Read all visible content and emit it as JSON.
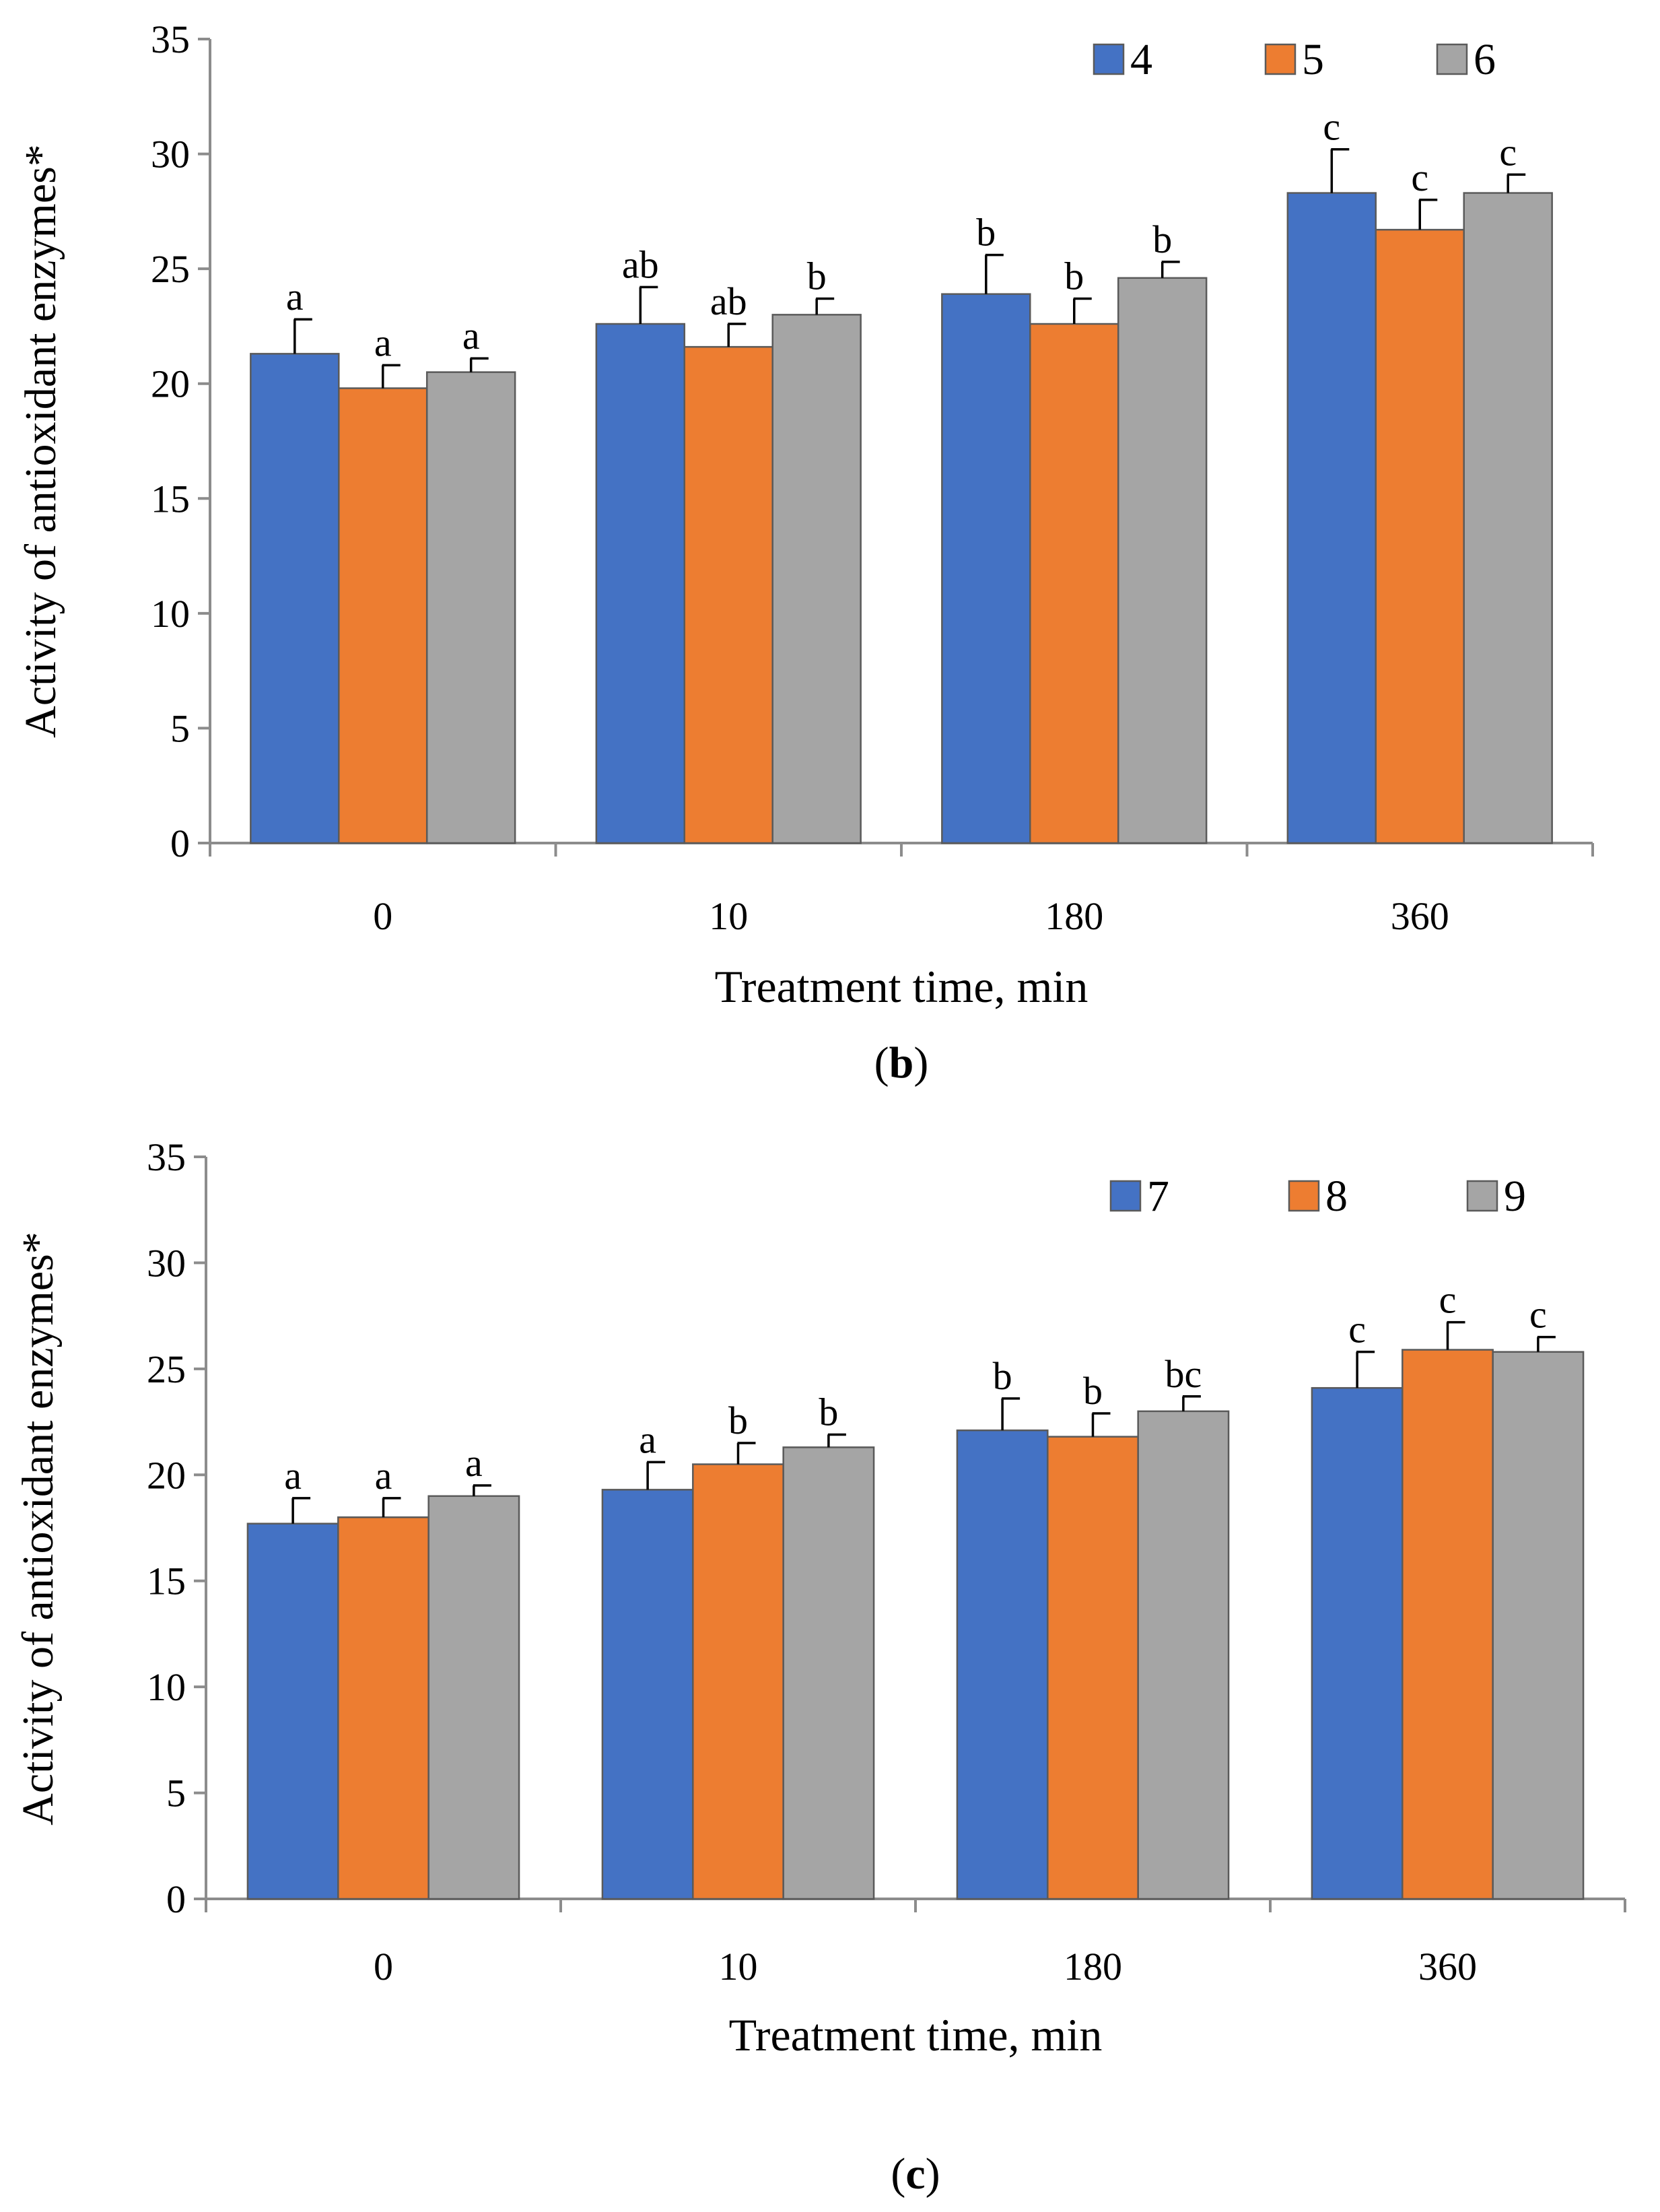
{
  "chart_data": [
    {
      "type": "bar",
      "panel_label": "b",
      "categories": [
        "0",
        "10",
        "180",
        "360"
      ],
      "series": [
        {
          "name": "4",
          "color": "#4472C4",
          "values": [
            21.3,
            22.6,
            23.9,
            28.3
          ],
          "errors": [
            1.5,
            1.6,
            1.7,
            1.9
          ],
          "letters": [
            "a",
            "ab",
            "b",
            "c"
          ]
        },
        {
          "name": "5",
          "color": "#ED7D31",
          "values": [
            19.8,
            21.6,
            22.6,
            26.7
          ],
          "errors": [
            1.0,
            1.0,
            1.1,
            1.3
          ],
          "letters": [
            "a",
            "ab",
            "b",
            "c"
          ]
        },
        {
          "name": "6",
          "color": "#A5A5A5",
          "values": [
            20.5,
            23.0,
            24.6,
            28.3
          ],
          "errors": [
            0.6,
            0.7,
            0.7,
            0.8
          ],
          "letters": [
            "a",
            "b",
            "b",
            "c"
          ]
        }
      ],
      "xlabel": "Treatment time, min",
      "ylabel": "Activity of antioxidant enzymes*",
      "ylim": [
        0,
        35
      ],
      "yticks": [
        0,
        5,
        10,
        15,
        20,
        25,
        30,
        35
      ],
      "grid": false,
      "legend": "top-right"
    },
    {
      "type": "bar",
      "panel_label": "c",
      "categories": [
        "0",
        "10",
        "180",
        "360"
      ],
      "series": [
        {
          "name": "7",
          "color": "#4472C4",
          "values": [
            17.7,
            19.3,
            22.1,
            24.1
          ],
          "errors": [
            1.2,
            1.3,
            1.5,
            1.7
          ],
          "letters": [
            "a",
            "a",
            "b",
            "c"
          ]
        },
        {
          "name": "8",
          "color": "#ED7D31",
          "values": [
            18.0,
            20.5,
            21.8,
            25.9
          ],
          "errors": [
            0.9,
            1.0,
            1.1,
            1.3
          ],
          "letters": [
            "a",
            "b",
            "b",
            "c"
          ]
        },
        {
          "name": "9",
          "color": "#A5A5A5",
          "values": [
            19.0,
            21.3,
            23.0,
            25.8
          ],
          "errors": [
            0.5,
            0.6,
            0.7,
            0.7
          ],
          "letters": [
            "a",
            "b",
            "bc",
            "c"
          ]
        }
      ],
      "xlabel": "Treatment time, min",
      "ylabel": "Activity of antioxidant enzymes*",
      "ylim": [
        0,
        35
      ],
      "yticks": [
        0,
        5,
        10,
        15,
        20,
        25,
        30,
        35
      ],
      "grid": false,
      "legend": "top-right"
    }
  ]
}
